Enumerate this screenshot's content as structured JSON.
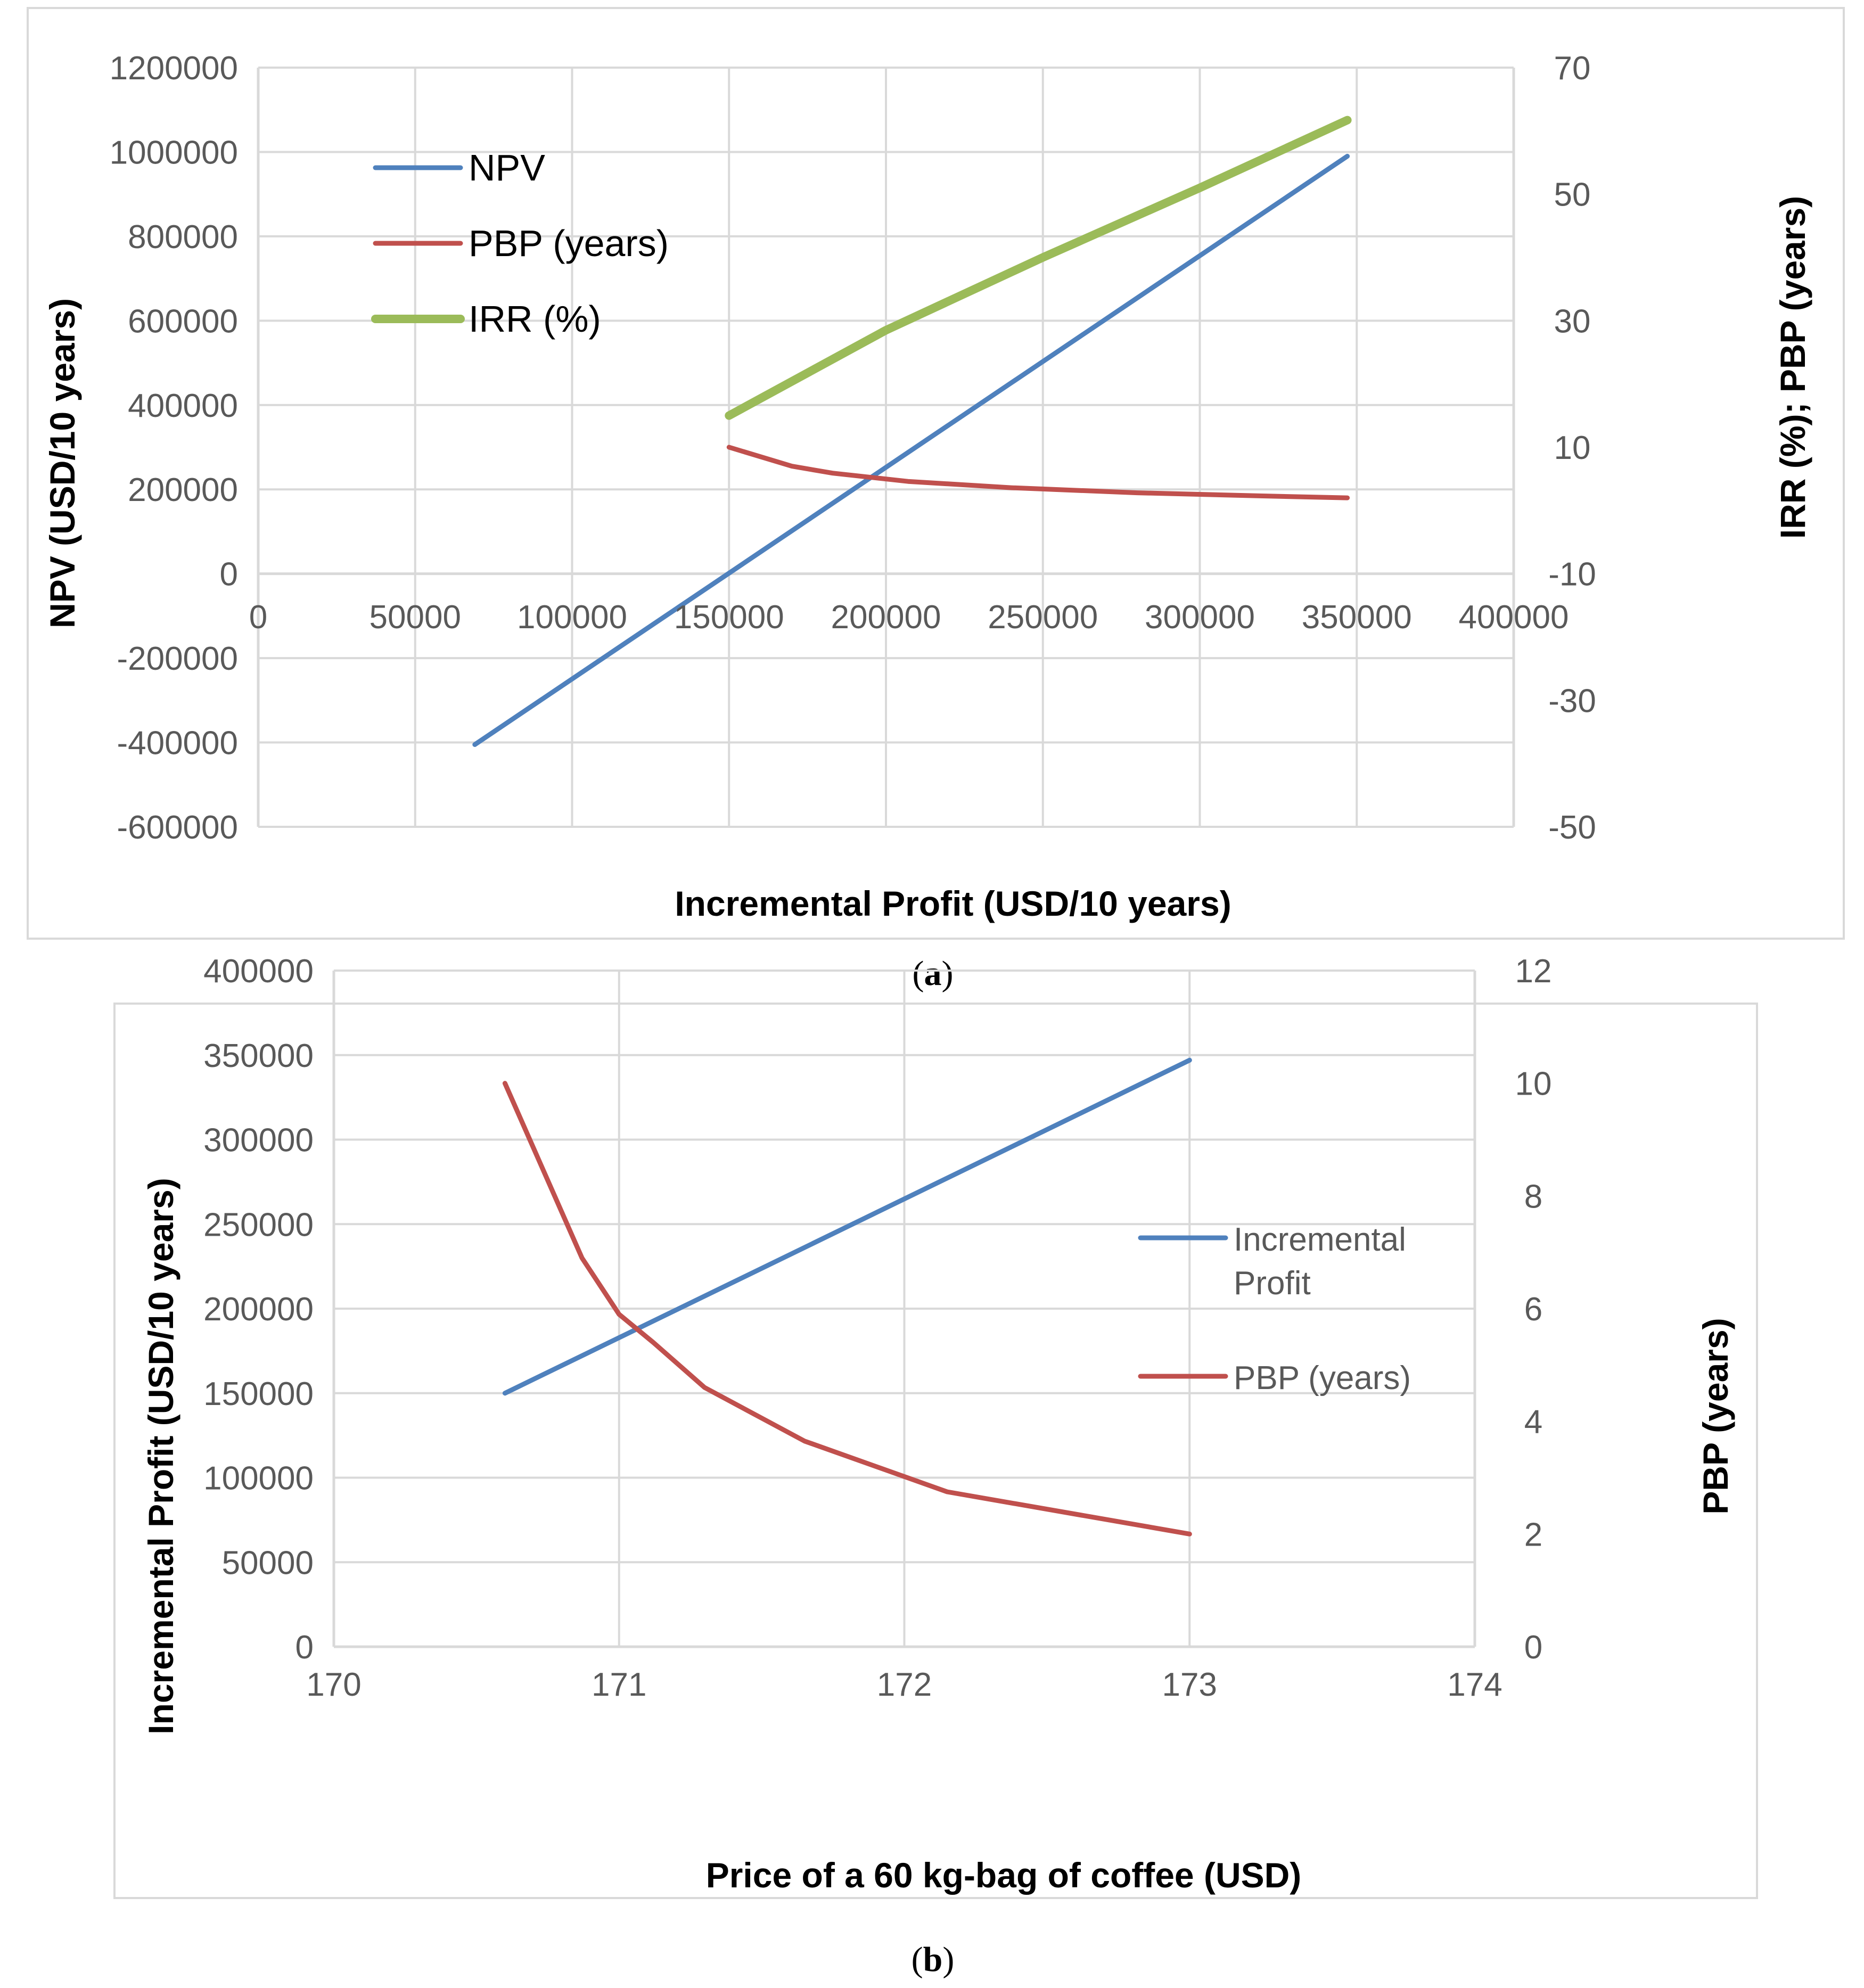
{
  "chart_data": [
    {
      "id": "a",
      "type": "line",
      "caption_letter": "a",
      "xlabel": "Incremental Profit (USD/10 years)",
      "ylabel": "NPV (USD/10 years)",
      "y2label": "IRR (%); PBP (years)",
      "xlim": [
        0,
        400000
      ],
      "ylim": [
        -600000,
        1200000
      ],
      "y2lim": [
        -50,
        70
      ],
      "x_ticks": [
        "0",
        "50000",
        "100000",
        "150000",
        "200000",
        "250000",
        "300000",
        "350000",
        "400000"
      ],
      "y_ticks": [
        "1200000",
        "1000000",
        "800000",
        "600000",
        "400000",
        "200000",
        "0",
        "-200000",
        "-400000",
        "-600000"
      ],
      "y2_ticks": [
        "70",
        "50",
        "30",
        "10",
        "-10",
        "-30",
        "-50"
      ],
      "grid": true,
      "legend_position": "upper-left",
      "series": [
        {
          "name": "NPV",
          "axis": "left",
          "color": "#4f81bd",
          "x": [
            69000,
            347000
          ],
          "y": [
            -405000,
            990000
          ]
        },
        {
          "name": "PBP (years)",
          "axis": "right",
          "color": "#c0504d",
          "x": [
            150000,
            170000,
            183000,
            207000,
            240000,
            280000,
            320000,
            347000
          ],
          "y": [
            10,
            7,
            5.9,
            4.6,
            3.6,
            2.8,
            2.3,
            2.0
          ]
        },
        {
          "name": "IRR (%)",
          "axis": "right",
          "color": "#9bbb59",
          "x": [
            150000,
            200000,
            250000,
            300000,
            347000
          ],
          "y": [
            15,
            28.5,
            40,
            51,
            61.7
          ]
        }
      ]
    },
    {
      "id": "b",
      "type": "line",
      "caption_letter": "b",
      "xlabel": "Price of a 60 kg-bag of coffee (USD)",
      "ylabel": "Incremental Profit (USD/10 years)",
      "y2label": "PBP (years)",
      "xlim": [
        170,
        174
      ],
      "ylim": [
        0,
        400000
      ],
      "y2lim": [
        0,
        12
      ],
      "x_ticks": [
        "170",
        "171",
        "172",
        "173",
        "174"
      ],
      "y_ticks": [
        "400000",
        "350000",
        "300000",
        "250000",
        "200000",
        "150000",
        "100000",
        "50000",
        "0"
      ],
      "y2_ticks": [
        "12",
        "10",
        "8",
        "6",
        "4",
        "2",
        "0"
      ],
      "grid": true,
      "legend_position": "right",
      "series": [
        {
          "name": "Incremental Profit",
          "name_lines": [
            "Incremental",
            "Profit"
          ],
          "axis": "left",
          "color": "#4f81bd",
          "x": [
            170.6,
            173
          ],
          "y": [
            150000,
            347000
          ]
        },
        {
          "name": "PBP (years)",
          "name_lines": [
            "PBP (years)"
          ],
          "axis": "right",
          "color": "#c0504d",
          "x": [
            170.6,
            170.87,
            171,
            171.12,
            171.3,
            171.65,
            172.15,
            173
          ],
          "y": [
            10,
            6.9,
            5.9,
            5.4,
            4.6,
            3.65,
            2.75,
            2.0
          ]
        }
      ]
    }
  ]
}
